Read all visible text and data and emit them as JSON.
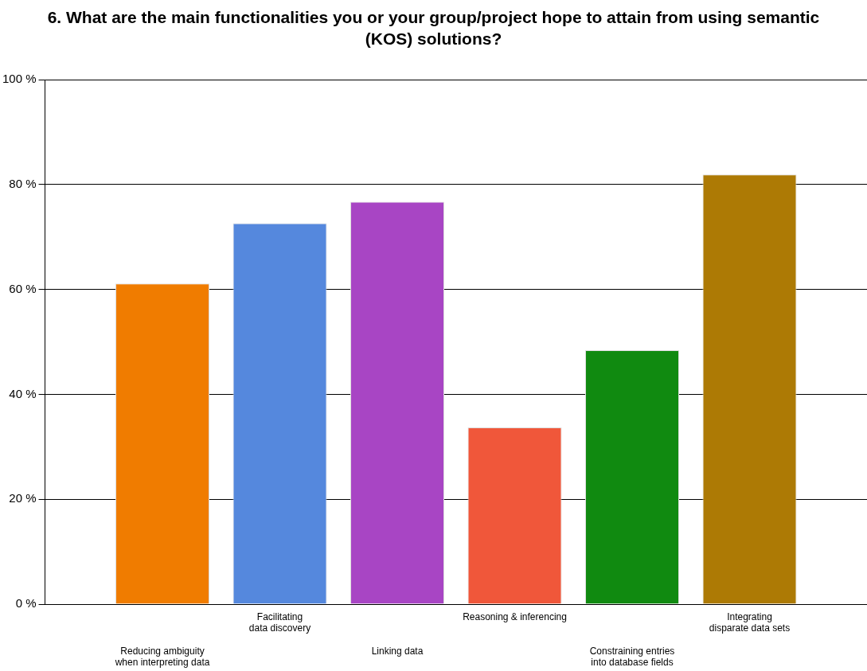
{
  "chart_data": {
    "type": "bar",
    "title": "6. What are the main functionalities you or your group/project hope to attain from using semantic (KOS) solutions?",
    "categories": [
      "Reducing ambiguity when interpreting data",
      "Facilitating data discovery",
      "Linking data",
      "Reasoning & inferencing",
      "Constraining entries into database fields",
      "Integrating disparate data sets"
    ],
    "values": [
      61.1,
      72.6,
      76.7,
      33.7,
      48.4,
      81.9
    ],
    "colors": [
      "#f07c00",
      "#5588dd",
      "#a845c4",
      "#f0573a",
      "#108a10",
      "#ad7a05"
    ],
    "ylim": [
      0,
      100
    ],
    "yticks": [
      {
        "value": 0,
        "label": "0 %"
      },
      {
        "value": 20,
        "label": "20 %"
      },
      {
        "value": 40,
        "label": "40 %"
      },
      {
        "value": 60,
        "label": "60 %"
      },
      {
        "value": 80,
        "label": "80 %"
      },
      {
        "value": 100,
        "label": "100 %"
      }
    ],
    "grid": "y",
    "legend": false
  }
}
